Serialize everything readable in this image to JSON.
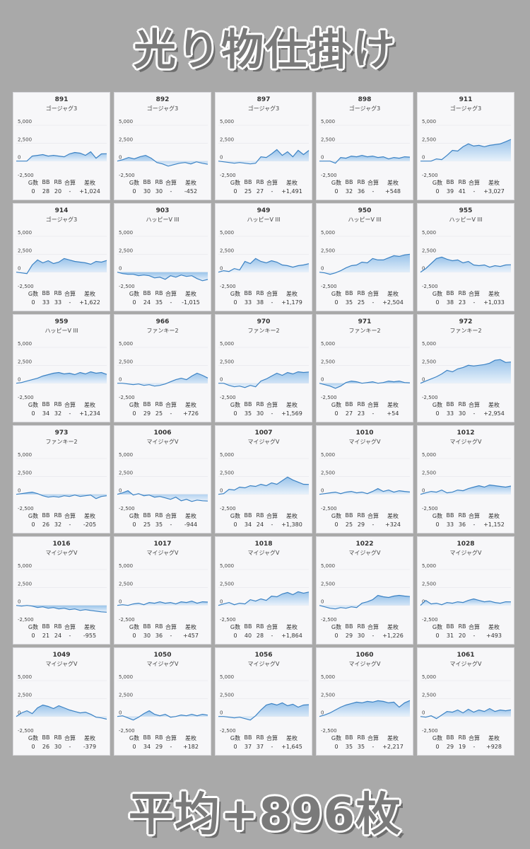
{
  "title": "光り物仕掛け",
  "footer": "平均+896枚",
  "colors": {
    "line": "#3b82c4",
    "fill_top": "#8ebde8",
    "fill_bottom": "#e7f1fb"
  },
  "stat_headers": [
    "G数",
    "BB",
    "RB",
    "合算",
    "差枚"
  ],
  "chart_data": [
    {
      "type": "area",
      "title": "891",
      "subtitle": "ゴージャグ3",
      "ylim": [
        -2500,
        5000
      ],
      "yticks": [
        "5,000",
        "2,500",
        "0",
        "-2,500"
      ],
      "values": [
        0,
        0,
        0,
        700,
        800,
        900,
        700,
        800,
        700,
        600,
        1000,
        1200,
        1100,
        800,
        1300,
        400,
        1000,
        1024
      ],
      "stats": {
        "G数": "0",
        "BB": "28",
        "RB": "20",
        "合算": "-",
        "差枚": "+1,024"
      }
    },
    {
      "type": "area",
      "title": "892",
      "subtitle": "ゴージャグ3",
      "ylim": [
        -2500,
        5000
      ],
      "yticks": [
        "5,000",
        "2,500",
        "0",
        "-2,500"
      ],
      "values": [
        0,
        200,
        500,
        300,
        600,
        800,
        400,
        -200,
        -400,
        -700,
        -500,
        -300,
        -200,
        -400,
        -100,
        -300,
        -452
      ],
      "stats": {
        "G数": "0",
        "BB": "30",
        "RB": "30",
        "合算": "-",
        "差枚": "-452"
      }
    },
    {
      "type": "area",
      "title": "897",
      "subtitle": "ゴージャグ3",
      "ylim": [
        -2500,
        5000
      ],
      "yticks": [
        "5,000",
        "2,500",
        "0",
        "-2,500"
      ],
      "values": [
        0,
        -100,
        -200,
        -300,
        -200,
        -300,
        -400,
        -300,
        600,
        500,
        1000,
        1600,
        800,
        1300,
        600,
        1500,
        900,
        1491
      ],
      "stats": {
        "G数": "0",
        "BB": "25",
        "RB": "27",
        "合算": "-",
        "差枚": "+1,491"
      }
    },
    {
      "type": "area",
      "title": "898",
      "subtitle": "ゴージャグ3",
      "ylim": [
        -2500,
        5000
      ],
      "yticks": [
        "5,000",
        "2,500",
        "0",
        "-2,500"
      ],
      "values": [
        0,
        0,
        0,
        -300,
        500,
        400,
        700,
        600,
        800,
        600,
        700,
        500,
        600,
        300,
        500,
        400,
        600,
        548
      ],
      "stats": {
        "G数": "0",
        "BB": "32",
        "RB": "36",
        "合算": "-",
        "差枚": "+548"
      }
    },
    {
      "type": "area",
      "title": "911",
      "subtitle": "ゴージャグ3",
      "ylim": [
        -2500,
        5000
      ],
      "yticks": [
        "5,000",
        "2,500",
        "0",
        "-2,500"
      ],
      "values": [
        0,
        0,
        0,
        300,
        200,
        800,
        1500,
        1400,
        2000,
        2400,
        2100,
        2200,
        2000,
        2200,
        2300,
        2400,
        2700,
        3027
      ],
      "stats": {
        "G数": "0",
        "BB": "39",
        "RB": "41",
        "合算": "-",
        "差枚": "+3,027"
      }
    },
    {
      "type": "area",
      "title": "914",
      "subtitle": "ゴージャグ3",
      "ylim": [
        -2500,
        5000
      ],
      "yticks": [
        "5,000",
        "2,500",
        "0",
        "-2,500"
      ],
      "values": [
        0,
        -100,
        -200,
        1000,
        1700,
        1300,
        1600,
        1200,
        1400,
        1900,
        1700,
        1500,
        1400,
        1300,
        1100,
        1500,
        1400,
        1622
      ],
      "stats": {
        "G数": "0",
        "BB": "33",
        "RB": "33",
        "合算": "-",
        "差枚": "+1,622"
      }
    },
    {
      "type": "area",
      "title": "903",
      "subtitle": "ハッピーV III",
      "ylim": [
        -2500,
        5000
      ],
      "yticks": [
        "5,000",
        "2,500",
        "0",
        "-2,500"
      ],
      "values": [
        0,
        -200,
        -300,
        -300,
        -500,
        -400,
        -500,
        -800,
        -700,
        -1000,
        -500,
        -700,
        -400,
        -600,
        -500,
        -900,
        -1200,
        -1015
      ],
      "stats": {
        "G数": "0",
        "BB": "24",
        "RB": "35",
        "合算": "-",
        "差枚": "-1,015"
      }
    },
    {
      "type": "area",
      "title": "949",
      "subtitle": "ハッピーV III",
      "ylim": [
        -2500,
        5000
      ],
      "yticks": [
        "5,000",
        "2,500",
        "0",
        "-2,500"
      ],
      "values": [
        0,
        200,
        100,
        500,
        300,
        1500,
        1200,
        1900,
        1500,
        1300,
        1600,
        1400,
        1000,
        900,
        700,
        900,
        1000,
        1179
      ],
      "stats": {
        "G数": "0",
        "BB": "33",
        "RB": "38",
        "合算": "-",
        "差枚": "+1,179"
      }
    },
    {
      "type": "area",
      "title": "950",
      "subtitle": "ハッピーV III",
      "ylim": [
        -2500,
        5000
      ],
      "yticks": [
        "5,000",
        "2,500",
        "0",
        "-2,500"
      ],
      "values": [
        0,
        -100,
        -300,
        -100,
        200,
        600,
        900,
        1000,
        1400,
        1300,
        1900,
        1700,
        1700,
        2000,
        2300,
        2200,
        2400,
        2504
      ],
      "stats": {
        "G数": "0",
        "BB": "35",
        "RB": "25",
        "合算": "-",
        "差枚": "+2,504"
      }
    },
    {
      "type": "area",
      "title": "955",
      "subtitle": "ハッピーV III",
      "ylim": [
        -2500,
        5000
      ],
      "yticks": [
        "5,000",
        "2,500",
        "0",
        "-2,500"
      ],
      "values": [
        0,
        500,
        1200,
        1900,
        2100,
        1800,
        1600,
        1700,
        1300,
        1500,
        1000,
        900,
        1000,
        700,
        900,
        800,
        1000,
        1033
      ],
      "stats": {
        "G数": "0",
        "BB": "38",
        "RB": "23",
        "合算": "-",
        "差枚": "+1,033"
      }
    },
    {
      "type": "area",
      "title": "959",
      "subtitle": "ハッピーV III",
      "ylim": [
        -2500,
        5000
      ],
      "yticks": [
        "5,000",
        "2,500",
        "0",
        "-2,500"
      ],
      "values": [
        0,
        100,
        300,
        500,
        700,
        1000,
        1200,
        1400,
        1500,
        1300,
        1400,
        1200,
        1500,
        1300,
        1600,
        1400,
        1500,
        1234
      ],
      "stats": {
        "G数": "0",
        "BB": "34",
        "RB": "32",
        "合算": "-",
        "差枚": "+1,234"
      }
    },
    {
      "type": "area",
      "title": "966",
      "subtitle": "ファンキー2",
      "ylim": [
        -2500,
        5000
      ],
      "yticks": [
        "5,000",
        "2,500",
        "0",
        "-2,500"
      ],
      "values": [
        0,
        0,
        -100,
        -200,
        -100,
        -300,
        -200,
        -400,
        -300,
        -100,
        200,
        500,
        700,
        500,
        1000,
        1400,
        1100,
        726
      ],
      "stats": {
        "G数": "0",
        "BB": "29",
        "RB": "25",
        "合算": "-",
        "差枚": "+726"
      }
    },
    {
      "type": "area",
      "title": "970",
      "subtitle": "ファンキー2",
      "ylim": [
        -2500,
        5000
      ],
      "yticks": [
        "5,000",
        "2,500",
        "0",
        "-2,500"
      ],
      "values": [
        0,
        0,
        -300,
        -500,
        -400,
        -600,
        -300,
        -500,
        300,
        600,
        1000,
        1400,
        1100,
        1500,
        1300,
        1600,
        1500,
        1569
      ],
      "stats": {
        "G数": "0",
        "BB": "35",
        "RB": "30",
        "合算": "-",
        "差枚": "+1,569"
      }
    },
    {
      "type": "area",
      "title": "971",
      "subtitle": "ファンキー2",
      "ylim": [
        -2500,
        5000
      ],
      "yticks": [
        "5,000",
        "2,500",
        "0",
        "-2,500"
      ],
      "values": [
        0,
        -200,
        -400,
        -700,
        -400,
        100,
        300,
        200,
        0,
        100,
        200,
        0,
        100,
        300,
        200,
        300,
        100,
        54
      ],
      "stats": {
        "G数": "0",
        "BB": "27",
        "RB": "23",
        "合算": "-",
        "差枚": "+54"
      }
    },
    {
      "type": "area",
      "title": "972",
      "subtitle": "ファンキー2",
      "ylim": [
        -2500,
        5000
      ],
      "yticks": [
        "5,000",
        "2,500",
        "0",
        "-2,500"
      ],
      "values": [
        0,
        300,
        600,
        900,
        1300,
        1800,
        1600,
        2000,
        2200,
        2500,
        2400,
        2500,
        2600,
        2800,
        3200,
        3300,
        2900,
        2954
      ],
      "stats": {
        "G数": "0",
        "BB": "33",
        "RB": "30",
        "合算": "-",
        "差枚": "+2,954"
      }
    },
    {
      "type": "area",
      "title": "973",
      "subtitle": "ファンキー2",
      "ylim": [
        -2500,
        5000
      ],
      "yticks": [
        "5,000",
        "2,500",
        "0",
        "-2,500"
      ],
      "values": [
        0,
        100,
        200,
        300,
        100,
        -200,
        -400,
        -300,
        -400,
        -200,
        -300,
        -100,
        -300,
        -200,
        -100,
        -600,
        -300,
        -205
      ],
      "stats": {
        "G数": "0",
        "BB": "26",
        "RB": "32",
        "合算": "-",
        "差枚": "-205"
      }
    },
    {
      "type": "area",
      "title": "1006",
      "subtitle": "マイジャグV",
      "ylim": [
        -2500,
        5000
      ],
      "yticks": [
        "5,000",
        "2,500",
        "0",
        "-2,500"
      ],
      "values": [
        0,
        200,
        500,
        -100,
        100,
        -200,
        -100,
        -400,
        -300,
        -500,
        -700,
        -400,
        -900,
        -700,
        -1000,
        -800,
        -900,
        -944
      ],
      "stats": {
        "G数": "0",
        "BB": "25",
        "RB": "35",
        "合算": "-",
        "差枚": "-944"
      }
    },
    {
      "type": "area",
      "title": "1007",
      "subtitle": "マイジャグV",
      "ylim": [
        -2500,
        5000
      ],
      "yticks": [
        "5,000",
        "2,500",
        "0",
        "-2,500"
      ],
      "values": [
        0,
        100,
        700,
        600,
        1000,
        900,
        1200,
        1100,
        1400,
        1200,
        1600,
        1400,
        1900,
        2400,
        2000,
        1700,
        1400,
        1380
      ],
      "stats": {
        "G数": "0",
        "BB": "34",
        "RB": "24",
        "合算": "-",
        "差枚": "+1,380"
      }
    },
    {
      "type": "area",
      "title": "1010",
      "subtitle": "マイジャグV",
      "ylim": [
        -2500,
        5000
      ],
      "yticks": [
        "5,000",
        "2,500",
        "0",
        "-2,500"
      ],
      "values": [
        0,
        100,
        200,
        300,
        100,
        300,
        400,
        200,
        300,
        100,
        400,
        800,
        400,
        600,
        300,
        500,
        400,
        324
      ],
      "stats": {
        "G数": "0",
        "BB": "25",
        "RB": "29",
        "合算": "-",
        "差枚": "+324"
      }
    },
    {
      "type": "area",
      "title": "1012",
      "subtitle": "マイジャグV",
      "ylim": [
        -2500,
        5000
      ],
      "yticks": [
        "5,000",
        "2,500",
        "0",
        "-2,500"
      ],
      "values": [
        0,
        200,
        400,
        300,
        600,
        200,
        300,
        600,
        500,
        800,
        1000,
        1200,
        1000,
        1300,
        1200,
        1100,
        1000,
        1152
      ],
      "stats": {
        "G数": "0",
        "BB": "33",
        "RB": "36",
        "合算": "-",
        "差枚": "+1,152"
      }
    },
    {
      "type": "area",
      "title": "1016",
      "subtitle": "マイジャグV",
      "ylim": [
        -2500,
        5000
      ],
      "yticks": [
        "5,000",
        "2,500",
        "0",
        "-2,500"
      ],
      "values": [
        0,
        -100,
        0,
        -100,
        -300,
        -200,
        -400,
        -300,
        -500,
        -400,
        -600,
        -500,
        -700,
        -600,
        -700,
        -800,
        -900,
        -955
      ],
      "stats": {
        "G数": "0",
        "BB": "21",
        "RB": "24",
        "合算": "-",
        "差枚": "-955"
      }
    },
    {
      "type": "area",
      "title": "1017",
      "subtitle": "マイジャグV",
      "ylim": [
        -2500,
        5000
      ],
      "yticks": [
        "5,000",
        "2,500",
        "0",
        "-2,500"
      ],
      "values": [
        0,
        100,
        0,
        200,
        300,
        100,
        400,
        300,
        500,
        300,
        400,
        200,
        500,
        400,
        600,
        300,
        500,
        457
      ],
      "stats": {
        "G数": "0",
        "BB": "30",
        "RB": "36",
        "合算": "-",
        "差枚": "+457"
      }
    },
    {
      "type": "area",
      "title": "1018",
      "subtitle": "マイジャグV",
      "ylim": [
        -2500,
        5000
      ],
      "yticks": [
        "5,000",
        "2,500",
        "0",
        "-2,500"
      ],
      "values": [
        0,
        200,
        400,
        100,
        300,
        200,
        800,
        600,
        900,
        700,
        1300,
        1200,
        1600,
        1800,
        1500,
        1900,
        1700,
        1864
      ],
      "stats": {
        "G数": "0",
        "BB": "40",
        "RB": "28",
        "合算": "-",
        "差枚": "+1,864"
      }
    },
    {
      "type": "area",
      "title": "1022",
      "subtitle": "マイジャグV",
      "ylim": [
        -2500,
        5000
      ],
      "yticks": [
        "5,000",
        "2,500",
        "0",
        "-2,500"
      ],
      "values": [
        0,
        -200,
        -400,
        -500,
        -300,
        -400,
        -200,
        -300,
        300,
        500,
        800,
        1400,
        1200,
        1100,
        1300,
        1400,
        1300,
        1226
      ],
      "stats": {
        "G数": "0",
        "BB": "29",
        "RB": "30",
        "合算": "-",
        "差枚": "+1,226"
      }
    },
    {
      "type": "area",
      "title": "1028",
      "subtitle": "マイジャグV",
      "ylim": [
        -2500,
        5000
      ],
      "yticks": [
        "5,000",
        "2,500",
        "0",
        "-2,500"
      ],
      "values": [
        0,
        700,
        200,
        300,
        100,
        400,
        300,
        500,
        400,
        700,
        900,
        700,
        500,
        600,
        400,
        300,
        500,
        493
      ],
      "stats": {
        "G数": "0",
        "BB": "31",
        "RB": "20",
        "合算": "-",
        "差枚": "+493"
      }
    },
    {
      "type": "area",
      "title": "1049",
      "subtitle": "マイジャグV",
      "ylim": [
        -2500,
        5000
      ],
      "yticks": [
        "5,000",
        "2,500",
        "0",
        "-2,500"
      ],
      "values": [
        0,
        500,
        800,
        400,
        1200,
        1600,
        1400,
        1100,
        1500,
        1200,
        900,
        700,
        500,
        600,
        300,
        -100,
        -200,
        -379
      ],
      "stats": {
        "G数": "0",
        "BB": "26",
        "RB": "30",
        "合算": "-",
        "差枚": "-379"
      }
    },
    {
      "type": "area",
      "title": "1050",
      "subtitle": "マイジャグV",
      "ylim": [
        -2500,
        5000
      ],
      "yticks": [
        "5,000",
        "2,500",
        "0",
        "-2,500"
      ],
      "values": [
        0,
        100,
        -200,
        -500,
        -100,
        400,
        800,
        300,
        100,
        300,
        -100,
        0,
        200,
        100,
        300,
        100,
        300,
        182
      ],
      "stats": {
        "G数": "0",
        "BB": "34",
        "RB": "29",
        "合算": "-",
        "差枚": "+182"
      }
    },
    {
      "type": "area",
      "title": "1056",
      "subtitle": "マイジャグV",
      "ylim": [
        -2500,
        5000
      ],
      "yticks": [
        "5,000",
        "2,500",
        "0",
        "-2,500"
      ],
      "values": [
        0,
        0,
        -100,
        -200,
        -100,
        -300,
        -500,
        100,
        900,
        1600,
        1800,
        1600,
        1900,
        1500,
        1700,
        1300,
        1600,
        1645
      ],
      "stats": {
        "G数": "0",
        "BB": "37",
        "RB": "37",
        "合算": "-",
        "差枚": "+1,645"
      }
    },
    {
      "type": "area",
      "title": "1060",
      "subtitle": "マイジャグV",
      "ylim": [
        -2500,
        5000
      ],
      "yticks": [
        "5,000",
        "2,500",
        "0",
        "-2,500"
      ],
      "values": [
        0,
        200,
        500,
        900,
        1300,
        1600,
        1800,
        2000,
        1900,
        2100,
        2000,
        2200,
        2100,
        1900,
        2000,
        1300,
        1900,
        2217
      ],
      "stats": {
        "G数": "0",
        "BB": "35",
        "RB": "35",
        "合算": "-",
        "差枚": "+2,217"
      }
    },
    {
      "type": "area",
      "title": "1061",
      "subtitle": "マイジャグV",
      "ylim": [
        -2500,
        5000
      ],
      "yticks": [
        "5,000",
        "2,500",
        "0",
        "-2,500"
      ],
      "values": [
        0,
        -100,
        100,
        -300,
        200,
        700,
        600,
        900,
        500,
        1000,
        600,
        900,
        700,
        1100,
        700,
        900,
        800,
        928
      ],
      "stats": {
        "G数": "0",
        "BB": "29",
        "RB": "19",
        "合算": "-",
        "差枚": "+928"
      }
    }
  ]
}
